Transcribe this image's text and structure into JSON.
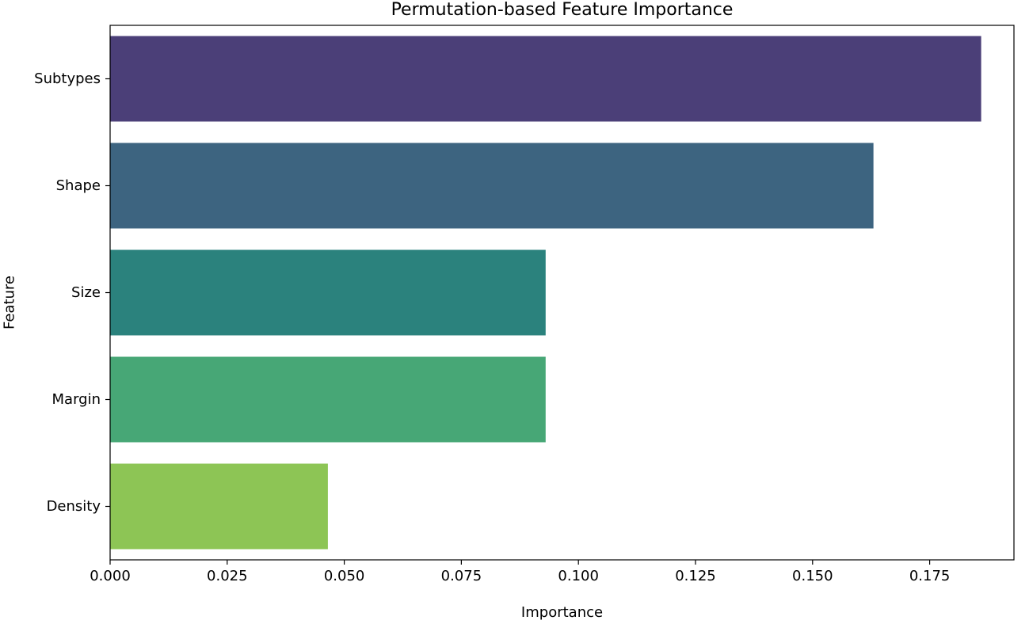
{
  "chart_data": {
    "type": "bar",
    "orientation": "horizontal",
    "title": "Permutation-based Feature Importance",
    "xlabel": "Importance",
    "ylabel": "Feature",
    "categories": [
      "Subtypes",
      "Shape",
      "Size",
      "Margin",
      "Density"
    ],
    "values": [
      0.186,
      0.163,
      0.093,
      0.093,
      0.0465
    ],
    "colors": [
      "#4b3f78",
      "#3d6480",
      "#2b827d",
      "#47a776",
      "#8dc555"
    ],
    "xlim": [
      0,
      0.193
    ],
    "xticks": [
      0.0,
      0.025,
      0.05,
      0.075,
      0.1,
      0.125,
      0.15,
      0.175
    ],
    "xtick_labels": [
      "0.000",
      "0.025",
      "0.050",
      "0.075",
      "0.100",
      "0.125",
      "0.150",
      "0.175"
    ],
    "grid": false
  }
}
